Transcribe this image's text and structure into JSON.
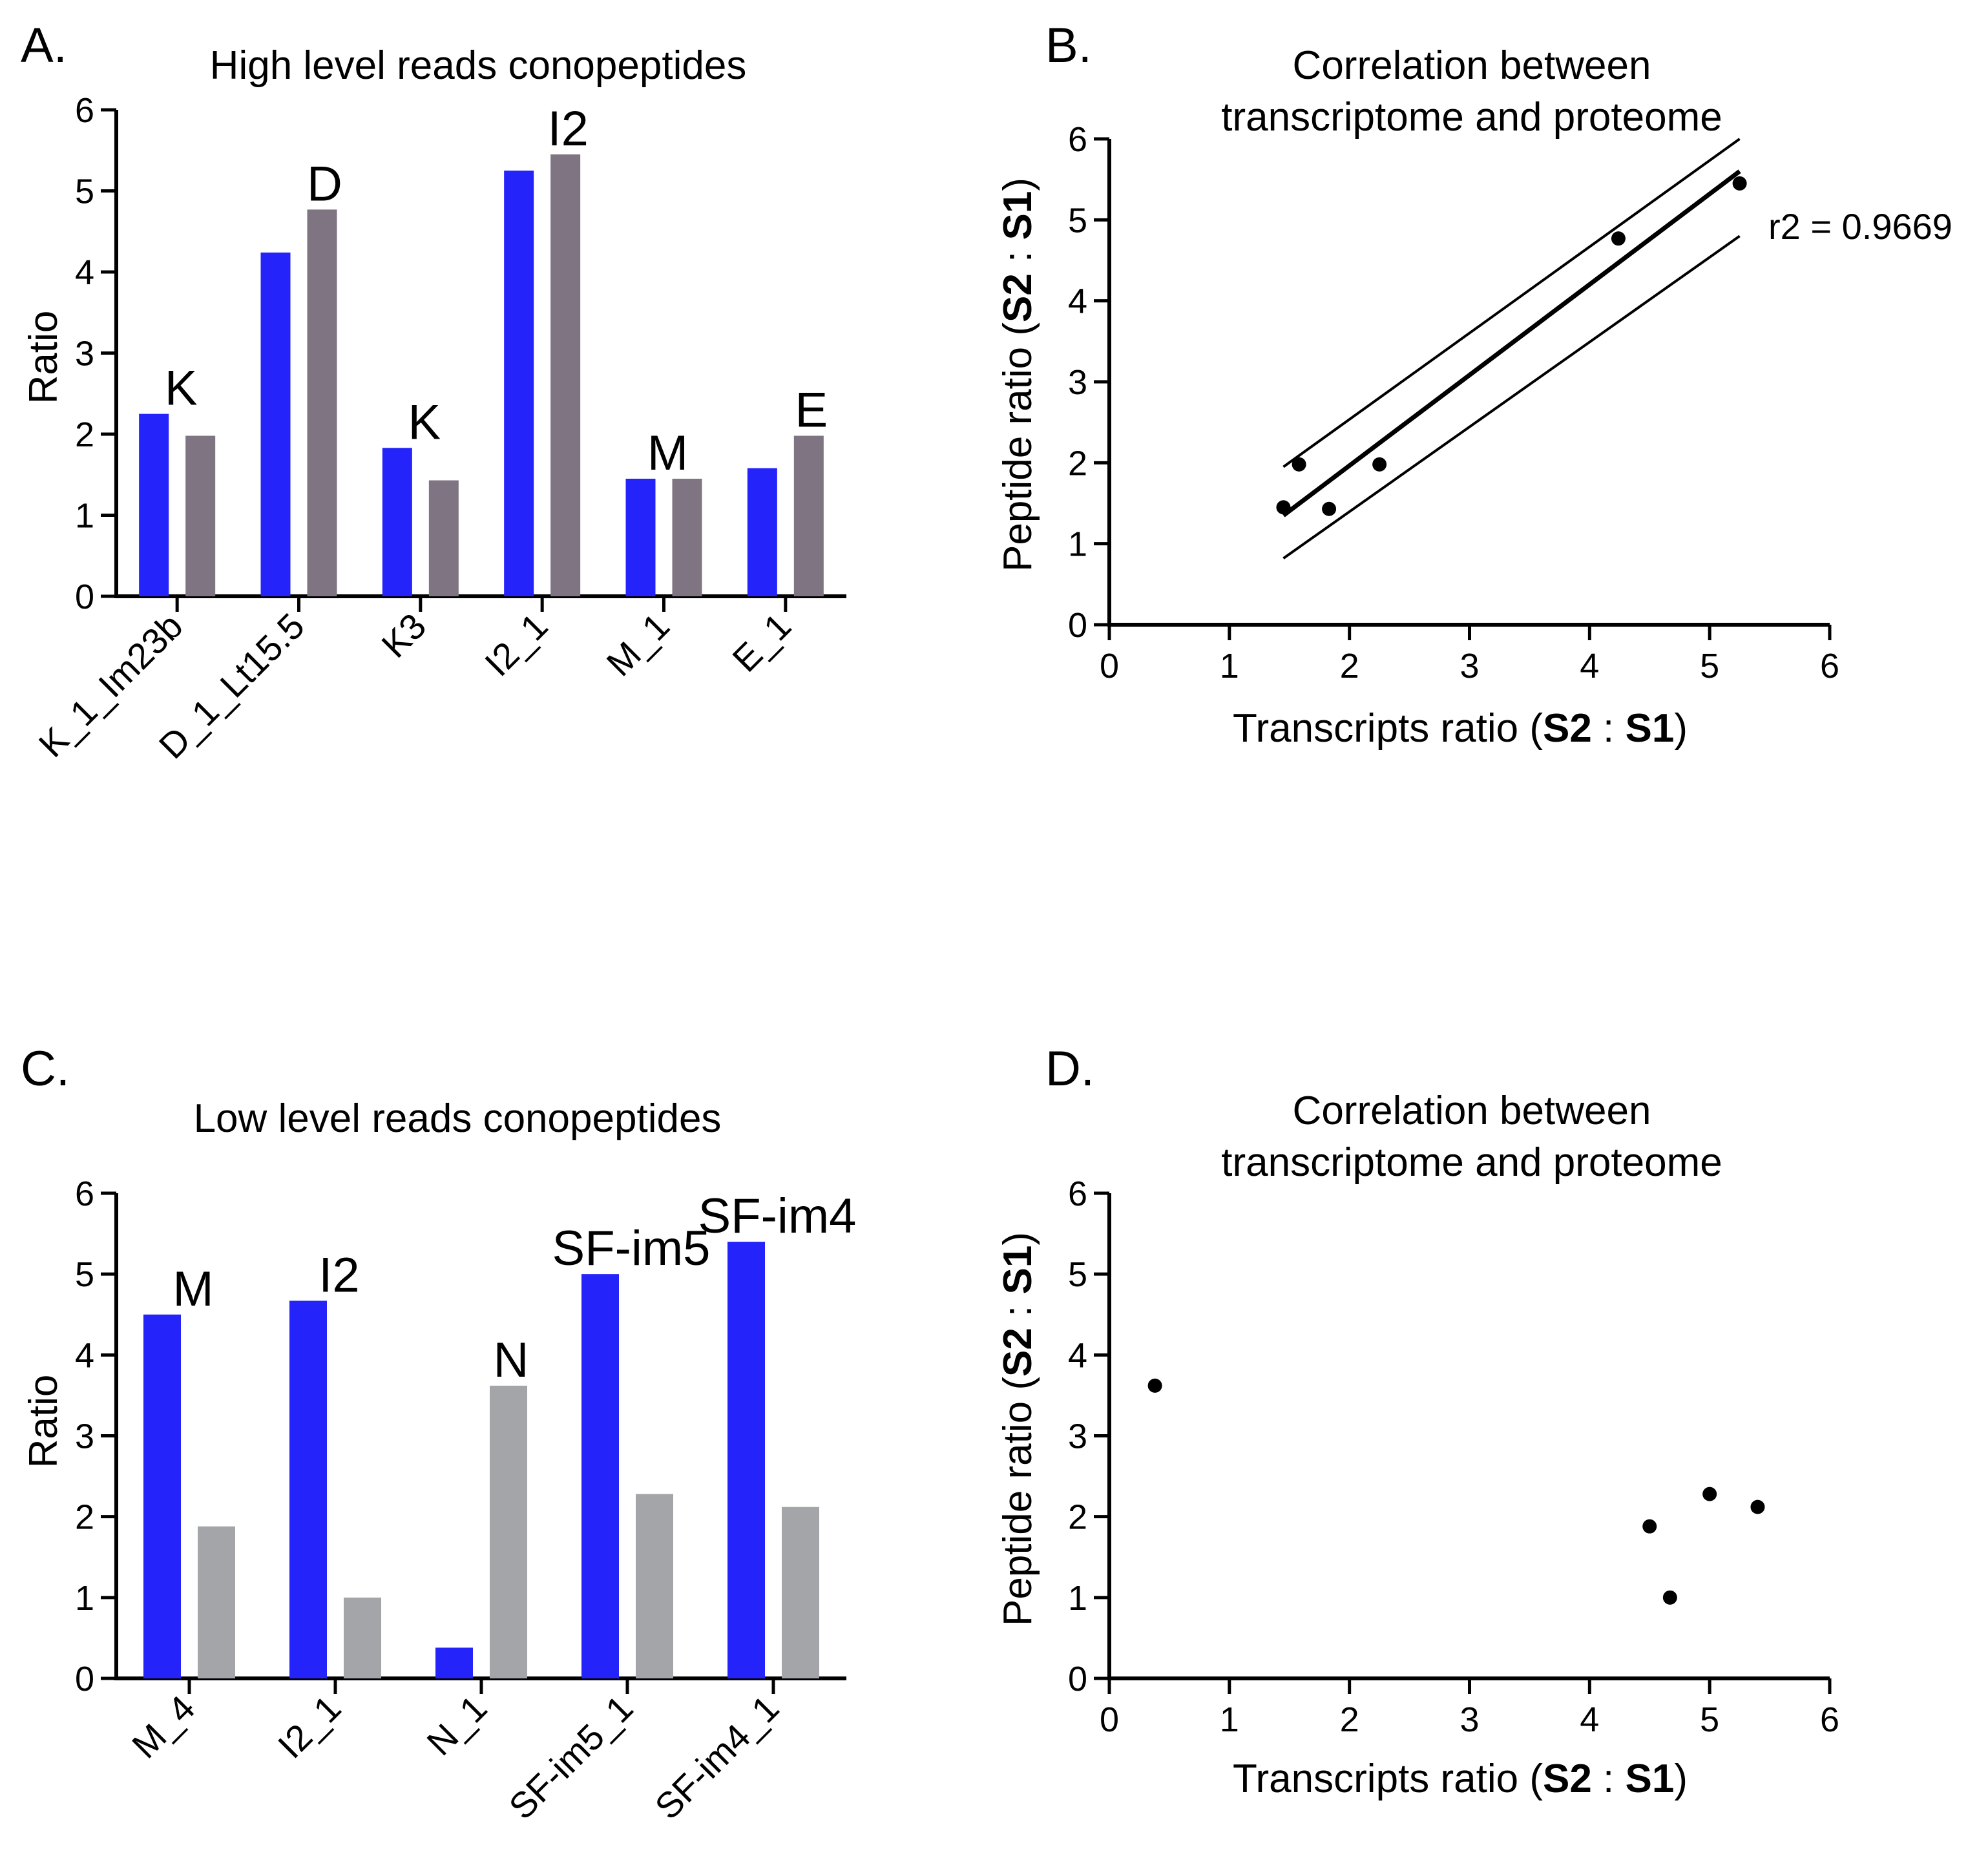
{
  "panels": {
    "a": {
      "letter": "A.",
      "title": "High level reads conopeptides"
    },
    "b": {
      "letter": "B.",
      "title_line1": "Correlation between",
      "title_line2": "transcriptome and proteome"
    },
    "c": {
      "letter": "C.",
      "title": "Low level reads conopeptides"
    },
    "d": {
      "letter": "D.",
      "title_line1": "Correlation between",
      "title_line2": "transcriptome and proteome"
    }
  },
  "colors": {
    "transcript": "#2323fa",
    "peptide_a": "#7f7481",
    "peptide_c": "#a4a5a9",
    "line": "#000000"
  },
  "scatter_labels": {
    "xlabel_prefix": "Transcripts ratio (",
    "ylabel_prefix": "Peptide ratio (",
    "s2": "S2",
    "colon": " : ",
    "s1": "S1",
    "suffix": ")"
  },
  "chart_data": [
    {
      "id": "a",
      "type": "bar",
      "title": "High level reads conopeptides",
      "ylabel": "Ratio",
      "xlabel": "",
      "ylim": [
        0,
        6
      ],
      "yticks": [
        "0",
        "1",
        "2",
        "3",
        "4",
        "5",
        "6"
      ],
      "categories": [
        "K_1_Im23b",
        "D_1_Lt15.5",
        "K3",
        "I2_1",
        "M_1",
        "E_1"
      ],
      "group_labels": [
        "K",
        "D",
        "K",
        "I2",
        "M",
        "E"
      ],
      "series": [
        {
          "name": "Transcripts ratio",
          "values": [
            2.25,
            4.24,
            1.83,
            5.25,
            1.45,
            1.58
          ]
        },
        {
          "name": "Peptide ratio",
          "values": [
            1.98,
            4.77,
            1.43,
            5.45,
            1.45,
            1.98
          ]
        }
      ]
    },
    {
      "id": "b",
      "type": "scatter",
      "title": "Correlation between transcriptome and proteome",
      "xlabel": "Transcripts ratio (S2 : S1)",
      "ylabel": "Peptide ratio (S2 : S1)",
      "xlim": [
        0,
        6
      ],
      "ylim": [
        0,
        6
      ],
      "xticks": [
        "0",
        "1",
        "2",
        "3",
        "4",
        "5",
        "6"
      ],
      "yticks": [
        "0",
        "1",
        "2",
        "3",
        "4",
        "5",
        "6"
      ],
      "points": {
        "x": [
          1.45,
          1.58,
          1.83,
          2.25,
          4.24,
          5.25
        ],
        "y": [
          1.45,
          1.98,
          1.43,
          1.98,
          4.77,
          5.45
        ]
      },
      "fit": {
        "x_range": [
          1.45,
          5.25
        ],
        "regression": [
          1.35,
          5.6
        ],
        "upper_band": [
          1.95,
          6.0
        ],
        "lower_band": [
          0.82,
          4.8
        ]
      },
      "annotation": "r2 = 0.9669"
    },
    {
      "id": "c",
      "type": "bar",
      "title": "Low level reads conopeptides",
      "ylabel": "Ratio",
      "xlabel": "",
      "ylim": [
        0,
        6
      ],
      "yticks": [
        "0",
        "1",
        "2",
        "3",
        "4",
        "5",
        "6"
      ],
      "categories": [
        "M_4",
        "I2_1",
        "N_1",
        "SF-im5_1",
        "SF-im4_1"
      ],
      "group_labels": [
        "M",
        "I2",
        "N",
        "SF-im5",
        "SF-im4"
      ],
      "series": [
        {
          "name": "Transcripts ratio",
          "values": [
            4.5,
            4.67,
            0.38,
            5.0,
            5.4
          ]
        },
        {
          "name": "Peptide ratio",
          "values": [
            1.88,
            1.0,
            3.62,
            2.28,
            2.12
          ]
        }
      ]
    },
    {
      "id": "d",
      "type": "scatter",
      "title": "Correlation between transcriptome and proteome",
      "xlabel": "Transcripts ratio (S2 : S1)",
      "ylabel": "Peptide ratio (S2 : S1)",
      "xlim": [
        0,
        6
      ],
      "ylim": [
        0,
        6
      ],
      "xticks": [
        "0",
        "1",
        "2",
        "3",
        "4",
        "5",
        "6"
      ],
      "yticks": [
        "0",
        "1",
        "2",
        "3",
        "4",
        "5",
        "6"
      ],
      "points": {
        "x": [
          0.38,
          4.5,
          4.67,
          5.0,
          5.4
        ],
        "y": [
          3.62,
          1.88,
          1.0,
          2.28,
          2.12
        ]
      }
    }
  ]
}
